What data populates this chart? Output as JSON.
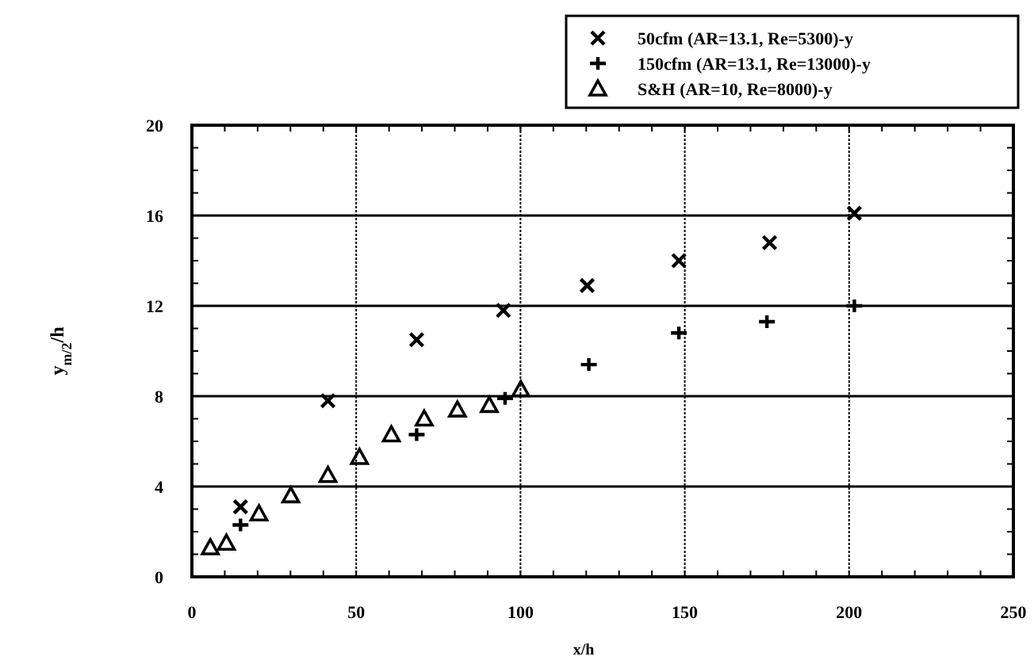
{
  "chart_data": {
    "type": "scatter",
    "xlabel": "x/h",
    "ylabel": "y$_{m/2}$/h",
    "xlim": [
      0,
      250
    ],
    "ylim": [
      0,
      20
    ],
    "xticks": [
      0,
      {
        "value": 10,
        "label": null
      },
      {
        "value": 20,
        "label": null
      },
      {
        "value": 30,
        "label": null
      },
      {
        "value": 40,
        "label": null
      },
      50,
      {
        "value": 60,
        "label": null
      },
      {
        "value": 70,
        "label": null
      },
      {
        "value": 80,
        "label": null
      },
      {
        "value": 90,
        "label": null
      },
      100,
      {
        "value": 110,
        "label": null
      },
      {
        "value": 120,
        "label": null
      },
      {
        "value": 130,
        "label": null
      },
      {
        "value": 140,
        "label": null
      },
      150,
      {
        "value": 160,
        "label": null
      },
      {
        "value": 170,
        "label": null
      },
      {
        "value": 180,
        "label": null
      },
      {
        "value": 190,
        "label": null
      },
      200,
      {
        "value": 210,
        "label": null
      },
      {
        "value": 220,
        "label": null
      },
      {
        "value": 230,
        "label": null
      },
      {
        "value": 240,
        "label": null
      },
      250
    ],
    "yticks": [
      0,
      {
        "value": 1,
        "label": null
      },
      {
        "value": 2,
        "label": null
      },
      {
        "value": 3,
        "label": null
      },
      4,
      {
        "value": 5,
        "label": null
      },
      {
        "value": 6,
        "label": null
      },
      {
        "value": 7,
        "label": null
      },
      8,
      {
        "value": 9,
        "label": null
      },
      {
        "value": 10,
        "label": null
      },
      {
        "value": 11,
        "label": null
      },
      12,
      {
        "value": 13,
        "label": null
      },
      {
        "value": 14,
        "label": null
      },
      {
        "value": 15,
        "label": null
      },
      16,
      {
        "value": 17,
        "label": null
      },
      {
        "value": 18,
        "label": null
      },
      {
        "value": 19,
        "label": null
      },
      20
    ],
    "grid": true,
    "legend": "top right",
    "series": [
      {
        "name": "50cfm (AR=13.1, Re=5300)-y",
        "color": "#000000",
        "marker": "cross",
        "x": [
          14.8,
          41.4,
          68.4,
          94.8,
          120.3,
          148.2,
          175.8,
          201.6
        ],
        "values": [
          3.1,
          7.8,
          10.5,
          11.8,
          12.9,
          14.0,
          14.8,
          16.1
        ]
      },
      {
        "name": "150cfm (AR=13.1, Re=13000)-y",
        "color": "#000000",
        "marker": "plus",
        "x": [
          14.8,
          68.4,
          95.3,
          120.8,
          148.2,
          175,
          201.6
        ],
        "values": [
          2.3,
          6.3,
          7.9,
          9.4,
          10.8,
          11.3,
          12.0
        ]
      },
      {
        "name": "S&H (AR=10, Re=8000)-y",
        "color": "#000000",
        "marker": "triangle",
        "x": [
          5.6,
          10.5,
          20.4,
          30.1,
          41.4,
          51,
          60.7,
          70.7,
          80.8,
          90.5,
          100.1
        ],
        "values": [
          1.3,
          1.5,
          2.8,
          3.6,
          4.5,
          5.3,
          6.3,
          7.0,
          7.4,
          7.6,
          8.3
        ]
      }
    ]
  }
}
